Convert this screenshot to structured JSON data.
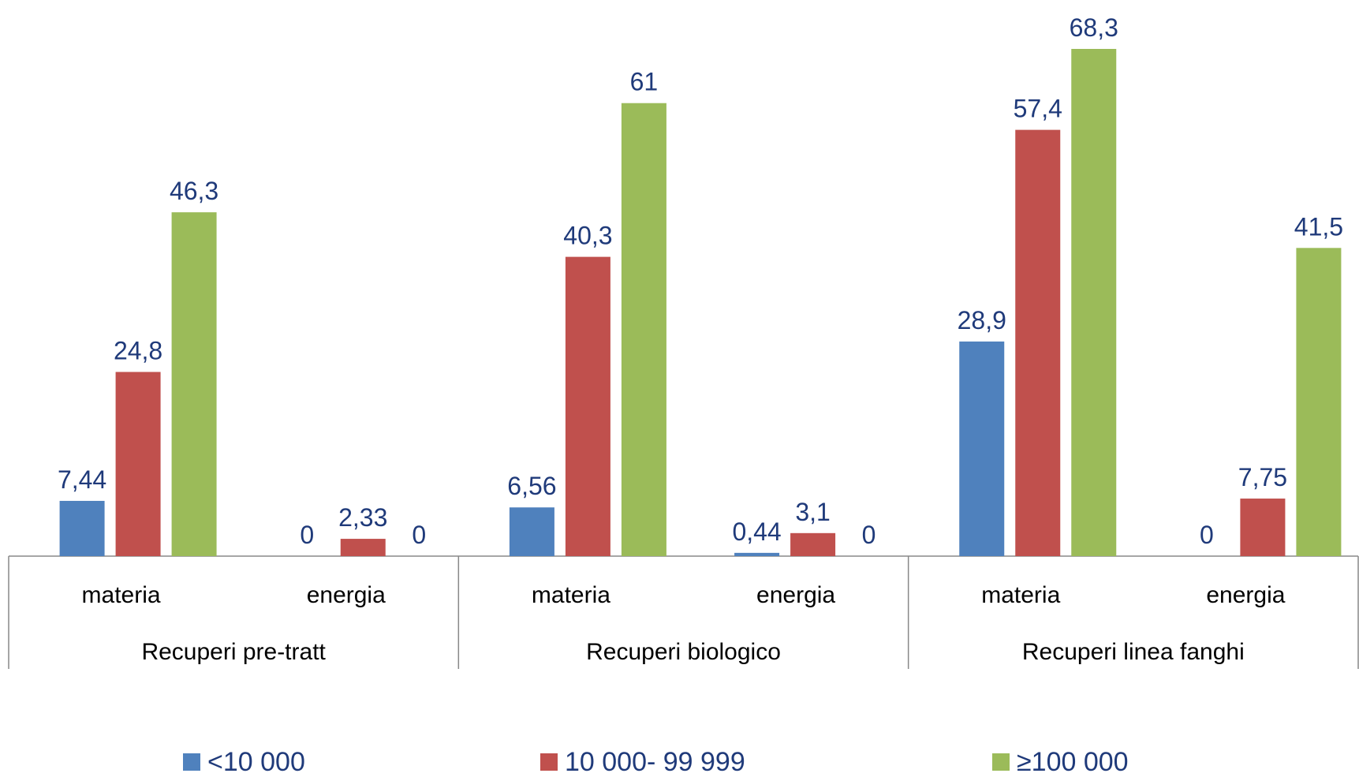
{
  "chart_data": {
    "type": "bar",
    "groups": [
      {
        "label": "Recuperi pre-tratt",
        "subcategories": [
          "materia",
          "energia"
        ]
      },
      {
        "label": "Recuperi biologico",
        "subcategories": [
          "materia",
          "energia"
        ]
      },
      {
        "label": "Recuperi linea fanghi",
        "subcategories": [
          "materia",
          "energia"
        ]
      }
    ],
    "series": [
      {
        "name": "<10 000",
        "color": "#4f81bd",
        "values": [
          7.44,
          0,
          6.56,
          0.44,
          28.9,
          0
        ],
        "labels": [
          "7,44",
          "0",
          "6,56",
          "0,44",
          "28,9",
          "0"
        ]
      },
      {
        "name": "10 000- 99 999",
        "color": "#c0504d",
        "values": [
          24.8,
          2.33,
          40.3,
          3.1,
          57.4,
          7.75
        ],
        "labels": [
          "24,8",
          "2,33",
          "40,3",
          "3,1",
          "57,4",
          "7,75"
        ]
      },
      {
        "name": "≥100 000",
        "color": "#9bbb59",
        "values": [
          46.3,
          0,
          61,
          0,
          68.3,
          41.5
        ],
        "labels": [
          "46,3",
          "0",
          "61",
          "0",
          "68,3",
          "41,5"
        ]
      }
    ],
    "ylim": [
      0,
      68.3
    ],
    "grid": false,
    "legend_position": "bottom",
    "data_label_color": "#1f3a7a"
  }
}
